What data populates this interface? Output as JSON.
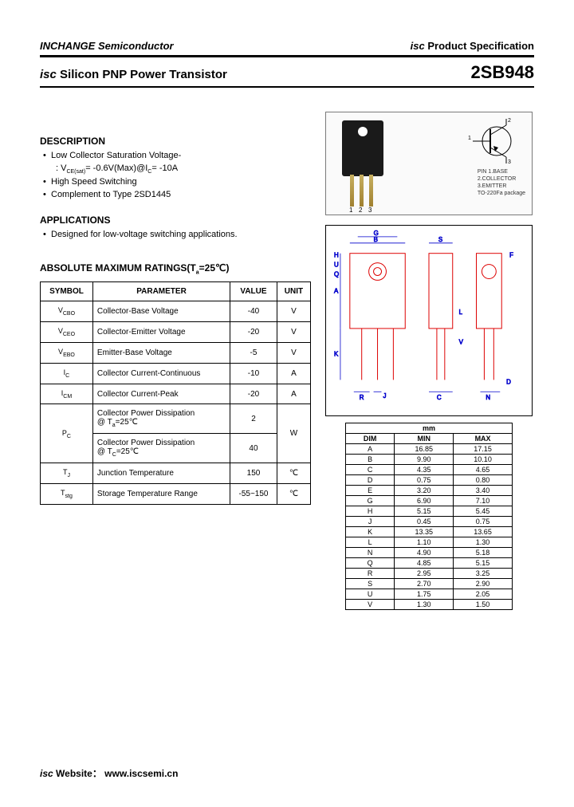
{
  "header": {
    "company": "INCHANGE Semiconductor",
    "spec_prefix": "isc",
    "spec_text": "Product Specification"
  },
  "title": {
    "prefix": "isc",
    "main": "Silicon PNP Power Transistor",
    "part_number": "2SB948"
  },
  "description": {
    "heading": "DESCRIPTION",
    "b1": "Low Collector Saturation Voltage-",
    "b1_sub": ": VCE(sat)= -0.6V(Max)@IC= -10A",
    "b2": "High Speed Switching",
    "b3": "Complement to Type 2SD1445"
  },
  "applications": {
    "heading": "APPLICATIONS",
    "b1": "Designed for low-voltage switching applications."
  },
  "ratings": {
    "heading": "ABSOLUTE MAXIMUM RATINGS(Ta=25℃)",
    "cols": {
      "c1": "SYMBOL",
      "c2": "PARAMETER",
      "c3": "VALUE",
      "c4": "UNIT"
    },
    "rows": [
      {
        "sym": "VCBO",
        "param": "Collector-Base Voltage",
        "val": "-40",
        "unit": "V"
      },
      {
        "sym": "VCEO",
        "param": "Collector-Emitter Voltage",
        "val": "-20",
        "unit": "V"
      },
      {
        "sym": "VEBO",
        "param": "Emitter-Base Voltage",
        "val": "-5",
        "unit": "V"
      },
      {
        "sym": "IC",
        "param": "Collector Current-Continuous",
        "val": "-10",
        "unit": "A"
      },
      {
        "sym": "ICM",
        "param": "Collector Current-Peak",
        "val": "-20",
        "unit": "A"
      }
    ],
    "pc": {
      "sym": "PC",
      "r1_param": "Collector Power Dissipation @ Ta=25℃",
      "r1_val": "2",
      "r2_param": "Collector Power Dissipation @ TC=25℃",
      "r2_val": "40",
      "unit": "W"
    },
    "tj": {
      "sym": "TJ",
      "param": "Junction Temperature",
      "val": "150",
      "unit": "℃"
    },
    "tstg": {
      "sym": "Tstg",
      "param": "Storage Temperature Range",
      "val": "-55~150",
      "unit": "℃"
    }
  },
  "package": {
    "pins": {
      "p1": "1",
      "p2": "2",
      "p3": "3"
    },
    "legend": {
      "l1": "PIN  1.BASE",
      "l2": "2.COLLECTOR",
      "l3": "3.EMITTER",
      "l4": "TO-220Fa package"
    }
  },
  "dimensions": {
    "header_mm": "mm",
    "cols": {
      "c1": "DIM",
      "c2": "MIN",
      "c3": "MAX"
    },
    "rows": [
      {
        "d": "A",
        "min": "16.85",
        "max": "17.15"
      },
      {
        "d": "B",
        "min": "9.90",
        "max": "10.10"
      },
      {
        "d": "C",
        "min": "4.35",
        "max": "4.65"
      },
      {
        "d": "D",
        "min": "0.75",
        "max": "0.80"
      },
      {
        "d": "E",
        "min": "3.20",
        "max": "3.40"
      },
      {
        "d": "G",
        "min": "6.90",
        "max": "7.10"
      },
      {
        "d": "H",
        "min": "5.15",
        "max": "5.45"
      },
      {
        "d": "J",
        "min": "0.45",
        "max": "0.75"
      },
      {
        "d": "K",
        "min": "13.35",
        "max": "13.65"
      },
      {
        "d": "L",
        "min": "1.10",
        "max": "1.30"
      },
      {
        "d": "N",
        "min": "4.90",
        "max": "5.18"
      },
      {
        "d": "Q",
        "min": "4.85",
        "max": "5.15"
      },
      {
        "d": "R",
        "min": "2.95",
        "max": "3.25"
      },
      {
        "d": "S",
        "min": "2.70",
        "max": "2.90"
      },
      {
        "d": "U",
        "min": "1.75",
        "max": "2.05"
      },
      {
        "d": "V",
        "min": "1.30",
        "max": "1.50"
      }
    ]
  },
  "footer": {
    "prefix": "isc",
    "label": "Website：",
    "url": "www.iscsemi.cn"
  }
}
